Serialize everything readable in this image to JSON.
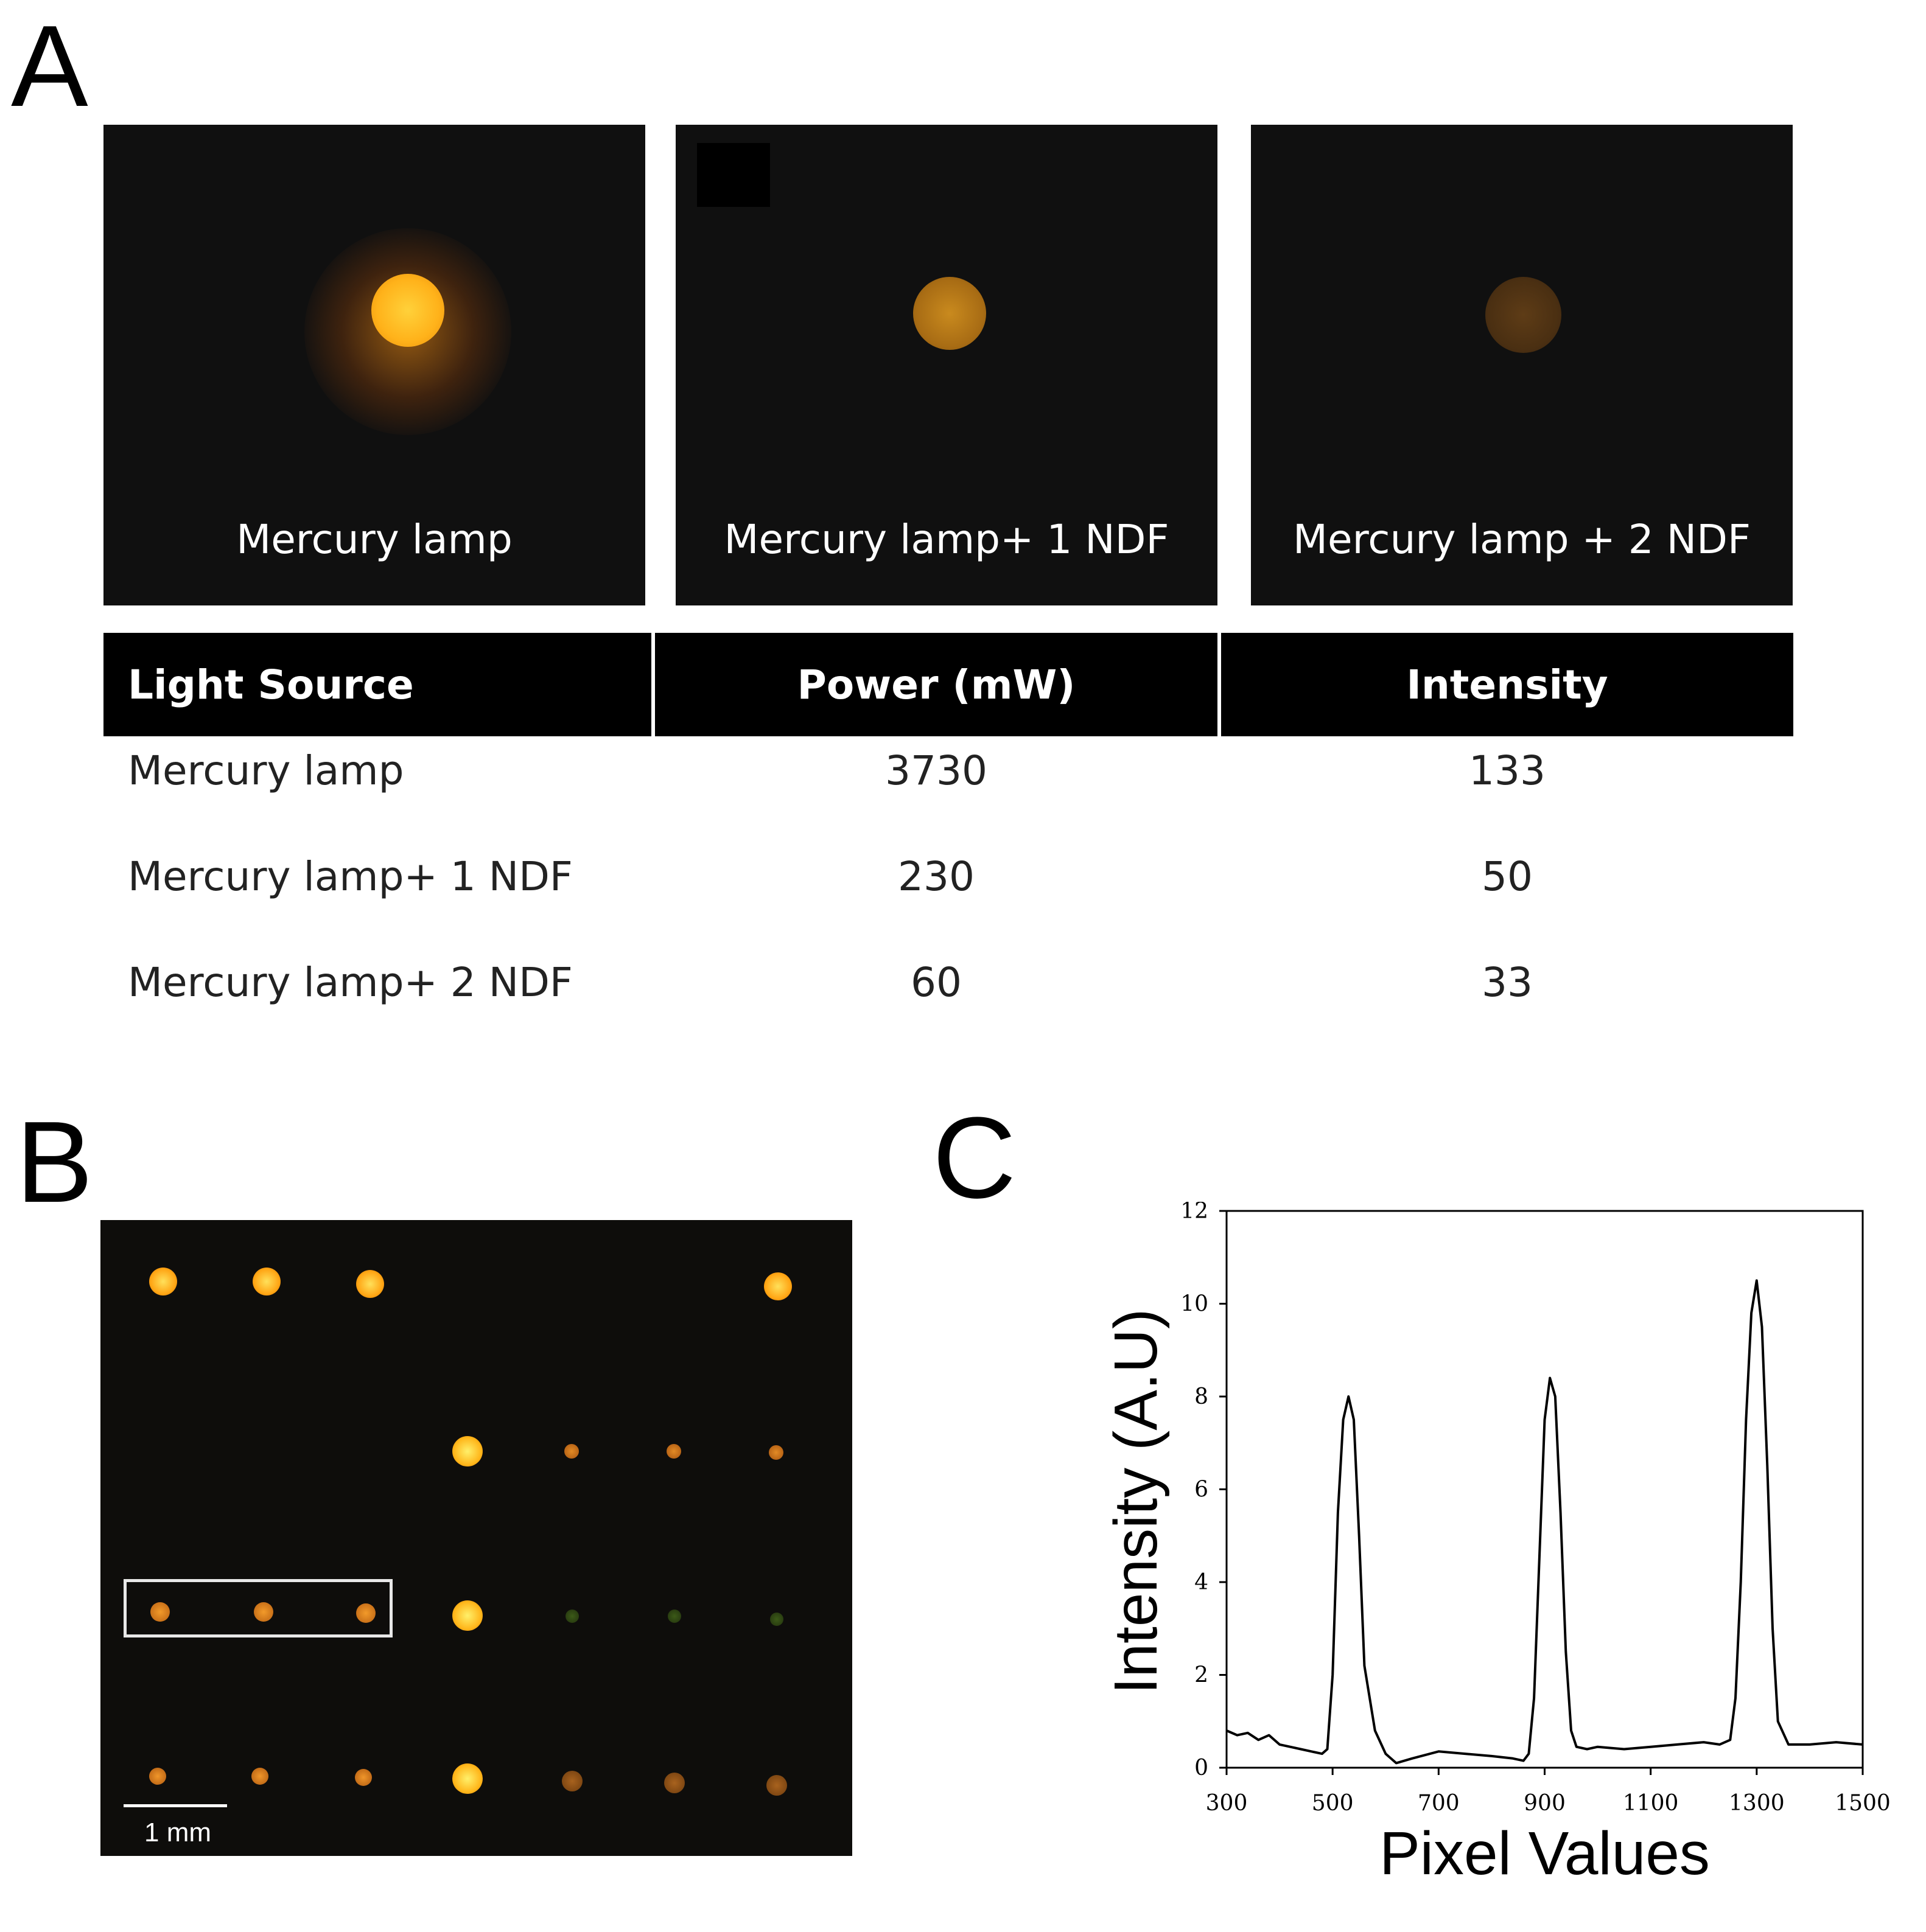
{
  "panel_a": {
    "letter": "A",
    "photos": [
      {
        "caption": "Mercury lamp",
        "brightness": "high"
      },
      {
        "caption": "Mercury lamp+ 1 NDF",
        "brightness": "medium"
      },
      {
        "caption": "Mercury lamp + 2 NDF",
        "brightness": "low"
      }
    ],
    "table": {
      "headers": [
        "Light Source",
        "Power (mW)",
        "Intensity"
      ],
      "rows": [
        [
          "Mercury lamp",
          "3730",
          "133"
        ],
        [
          "Mercury lamp+ 1 NDF",
          "230",
          "50"
        ],
        [
          "Mercury lamp+ 2 NDF",
          "60",
          "33"
        ]
      ]
    }
  },
  "panel_b": {
    "letter": "B",
    "scale_bar_label": "1 mm"
  },
  "panel_c": {
    "letter": "C"
  },
  "chart_data": {
    "type": "line",
    "title": "",
    "xlabel": "Pixel Values",
    "ylabel": "Intensity (A.U)",
    "xlim": [
      300,
      1500
    ],
    "ylim": [
      0,
      12
    ],
    "xticks": [
      300,
      500,
      700,
      900,
      1100,
      1300,
      1500
    ],
    "yticks": [
      0,
      2,
      4,
      6,
      8,
      10,
      12
    ],
    "grid": false,
    "line_color": "#000000",
    "series": [
      {
        "x": [
          300,
          320,
          340,
          360,
          380,
          400,
          420,
          440,
          460,
          480,
          490,
          500,
          510,
          520,
          530,
          540,
          550,
          560,
          580,
          600,
          620,
          650,
          700,
          750,
          800,
          840,
          860,
          870,
          880,
          890,
          900,
          910,
          920,
          930,
          940,
          950,
          960,
          980,
          1000,
          1050,
          1100,
          1150,
          1200,
          1230,
          1250,
          1260,
          1270,
          1280,
          1290,
          1300,
          1310,
          1320,
          1330,
          1340,
          1360,
          1400,
          1450,
          1500
        ],
        "y": [
          0.8,
          0.7,
          0.75,
          0.6,
          0.7,
          0.5,
          0.45,
          0.4,
          0.35,
          0.3,
          0.4,
          2.0,
          5.5,
          7.5,
          8.0,
          7.5,
          5.0,
          2.2,
          0.8,
          0.3,
          0.1,
          0.2,
          0.35,
          0.3,
          0.25,
          0.2,
          0.15,
          0.3,
          1.5,
          4.5,
          7.5,
          8.4,
          8.0,
          5.5,
          2.5,
          0.8,
          0.45,
          0.4,
          0.45,
          0.4,
          0.45,
          0.5,
          0.55,
          0.5,
          0.6,
          1.5,
          4.0,
          7.5,
          9.8,
          10.5,
          9.5,
          6.5,
          3.0,
          1.0,
          0.5,
          0.5,
          0.55,
          0.5
        ]
      }
    ]
  }
}
